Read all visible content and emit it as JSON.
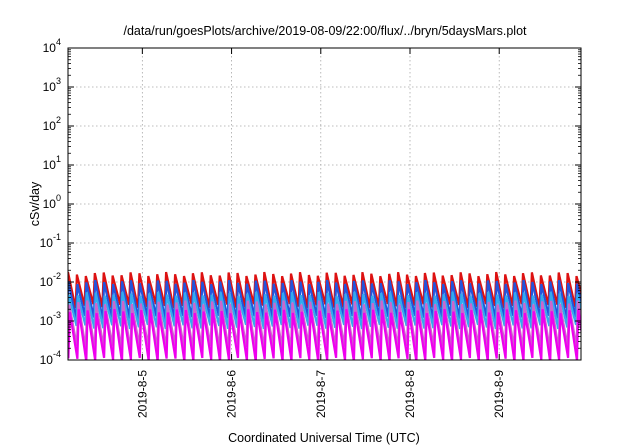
{
  "chart_data": {
    "type": "line",
    "title": "/data/run/goesPlots/archive/2019-08-09/22:00/flux/../bryn/5daysMars.plot",
    "xlabel": "Coordinated Universal Time (UTC)",
    "ylabel": "cSv/day",
    "xlim": [
      "2019-08-04 04:00",
      "2019-08-09 22:00"
    ],
    "ylim": [
      0.0001,
      10000
    ],
    "yscale": "log",
    "grid": true,
    "legend": "none",
    "x_ticks": [
      {
        "label": "2019-8-5",
        "value": "2019-08-05 00:00"
      },
      {
        "label": "2019-8-6",
        "value": "2019-08-06 00:00"
      },
      {
        "label": "2019-8-7",
        "value": "2019-08-07 00:00"
      },
      {
        "label": "2019-8-8",
        "value": "2019-08-08 00:00"
      },
      {
        "label": "2019-8-9",
        "value": "2019-08-09 00:00"
      }
    ],
    "y_ticks": [
      {
        "base": "10",
        "exp": "-4",
        "value": 0.0001
      },
      {
        "base": "10",
        "exp": "-3",
        "value": 0.001
      },
      {
        "base": "10",
        "exp": "-2",
        "value": 0.01
      },
      {
        "base": "10",
        "exp": "-1",
        "value": 0.1
      },
      {
        "base": "10",
        "exp": "0",
        "value": 1
      },
      {
        "base": "10",
        "exp": "1",
        "value": 10
      },
      {
        "base": "10",
        "exp": "2",
        "value": 100
      },
      {
        "base": "10",
        "exp": "3",
        "value": 1000
      },
      {
        "base": "10",
        "exp": "4",
        "value": 10000
      }
    ],
    "sawtooth_period_hours": 2.4,
    "series": [
      {
        "color": "#dd1111",
        "peak": 0.016,
        "trough": 0.0024,
        "phase": 0.0
      },
      {
        "color": "#2255dd",
        "peak": 0.01,
        "trough": 0.0012,
        "phase": 0.05
      },
      {
        "color": "#33aaee",
        "peak": 0.005,
        "trough": 0.0007,
        "phase": 0.1
      },
      {
        "color": "#cc66cc",
        "peak": 0.003,
        "trough": 0.0002,
        "phase": 0.15
      },
      {
        "color": "#ee00ee",
        "peak": 0.0018,
        "trough": 0.0001,
        "phase": 0.2
      }
    ]
  }
}
